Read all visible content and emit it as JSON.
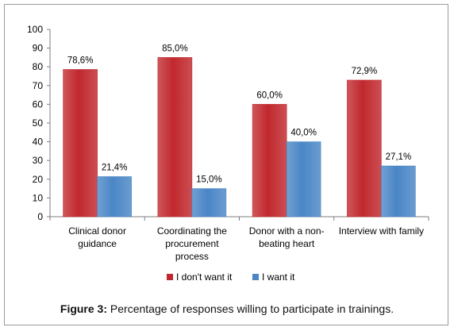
{
  "chart_data": {
    "type": "bar",
    "categories": [
      [
        "Clinical donor",
        "guidance"
      ],
      [
        "Coordinating the",
        "procurement",
        "process"
      ],
      [
        "Donor with a non-",
        "beating heart"
      ],
      [
        "Interview with family"
      ]
    ],
    "series": [
      {
        "name": "I don't want it",
        "color": "#c0282d",
        "values": [
          78.6,
          85.0,
          60.0,
          72.9
        ],
        "labels": [
          "78,6%",
          "85,0%",
          "60,0%",
          "72,9%"
        ]
      },
      {
        "name": "I want it",
        "color": "#4a86c6",
        "values": [
          21.4,
          15.0,
          40.0,
          27.1
        ],
        "labels": [
          "21,4%",
          "15,0%",
          "40,0%",
          "27,1%"
        ]
      }
    ],
    "ylim": [
      0,
      100
    ],
    "yticks": [
      0,
      10,
      20,
      30,
      40,
      50,
      60,
      70,
      80,
      90,
      100
    ],
    "grid": false,
    "legend": "bottom"
  },
  "caption": {
    "label": "Figure 3:",
    "text": " Percentage of responses willing to participate in trainings."
  }
}
